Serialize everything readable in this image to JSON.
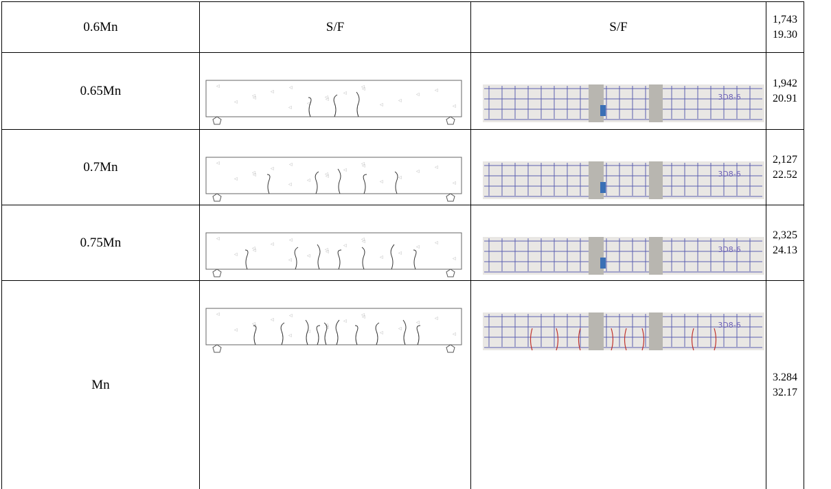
{
  "table": {
    "rows": [
      {
        "stage": "0.6Mn",
        "sketch": "S/F",
        "photo": "S/F",
        "load": "1,743",
        "deflection": "19.30"
      },
      {
        "stage": "0.65Mn",
        "load": "1,942",
        "deflection": "20.91"
      },
      {
        "stage": "0.7Mn",
        "load": "2,127",
        "deflection": "22.52"
      },
      {
        "stage": "0.75Mn",
        "load": "2,325",
        "deflection": "24.13"
      },
      {
        "stage": "Mn",
        "load": "3.284",
        "deflection": "32.17"
      }
    ],
    "photo_label": "3D8-6"
  }
}
